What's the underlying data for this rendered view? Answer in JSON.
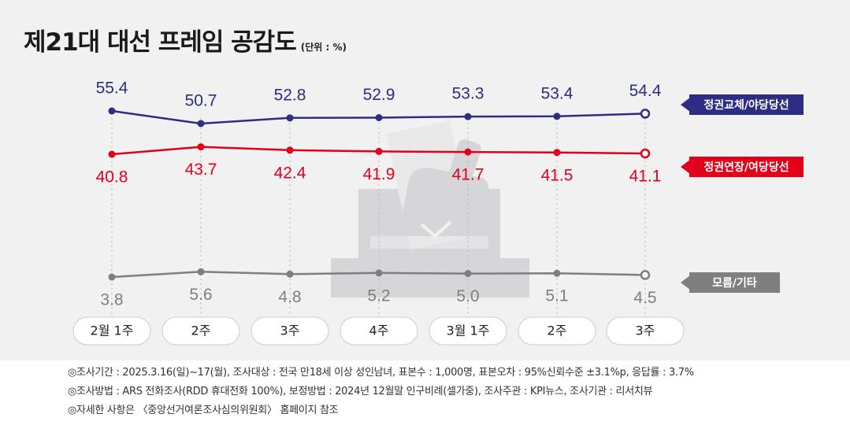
{
  "header": {
    "title": "제21대 대선 프레임 공감도",
    "unit": "(단위 : %)"
  },
  "colors": {
    "background": "#f1f1f2",
    "replace": "#2d2e83",
    "extend": "#e2001a",
    "unknown": "#7f7f7f",
    "watermark": "#d6d6d8",
    "pill_border": "#cccccc"
  },
  "watermark_icon": "ballot-box-icon",
  "chart_data": {
    "type": "line",
    "categories": [
      "2월 1주",
      "2주",
      "3주",
      "4주",
      "3월 1주",
      "2주",
      "3주"
    ],
    "series": [
      {
        "name": "정권교체/야당당선",
        "values": [
          55.4,
          50.7,
          52.8,
          52.9,
          53.3,
          53.4,
          54.4
        ]
      },
      {
        "name": "정권연장/여당당선",
        "values": [
          40.8,
          43.7,
          42.4,
          41.9,
          41.7,
          41.5,
          41.1
        ]
      },
      {
        "name": "모름/기타",
        "values": [
          3.8,
          5.6,
          4.8,
          5.2,
          5.0,
          5.1,
          4.5
        ]
      }
    ],
    "legend_placement": "right",
    "grid": false,
    "last_point_hollow": true,
    "xlabel": "",
    "ylabel": ""
  },
  "footer": {
    "notes": [
      "◎조사기간 : 2025.3.16(일)~17(월), 조사대상 : 전국 만18세 이상 성인남녀, 표본수 : 1,000명, 표본오차 : 95%신뢰수준 ±3.1%p, 응답률 : 3.7%",
      "◎조사방법 : ARS 전화조사(RDD 휴대전화 100%), 보정방법 : 2024년 12월말 인구비례(셀가중), 조사주관 : KPI뉴스, 조사기관 : 리서치뷰",
      "◎자세한 사항은 〈중앙선거여론조사심의위원회〉 홈페이지 참조"
    ]
  }
}
